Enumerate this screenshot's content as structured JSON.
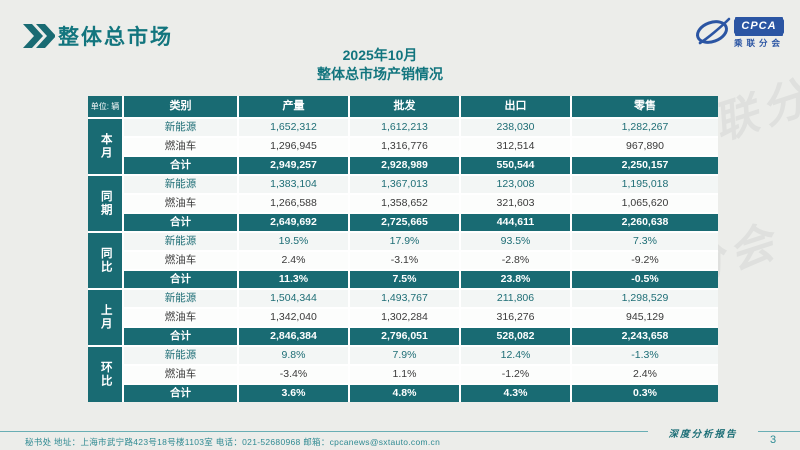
{
  "page": {
    "title": "整体总市场",
    "subtitle_line1": "2025年10月",
    "subtitle_line2": "整体总市场产销情况",
    "footer": "秘书处   地址：上海市武宁路423号18号楼1103室   电话：021-52680968   邮箱：cpcanews@sxtauto.com.cn",
    "report_label": "深度分析报告",
    "page_number": "3"
  },
  "logo": {
    "wordmark": "CPCA",
    "subtext": "乘联分会"
  },
  "watermark": {
    "text": "CPCA 乘联分会"
  },
  "colors": {
    "teal": "#196b73",
    "title_teal": "#12757e",
    "logo_blue": "#2b55a3",
    "nev_text": "#1e6e76"
  },
  "table": {
    "unit_label": "单位: 辆",
    "columns": [
      "类别",
      "产量",
      "批发",
      "出口",
      "零售"
    ],
    "groups": [
      {
        "label": "本月",
        "rows": [
          {
            "category": "新能源",
            "type": "nev",
            "values": [
              "1,652,312",
              "1,612,213",
              "238,030",
              "1,282,267"
            ]
          },
          {
            "category": "燃油车",
            "type": "fuel",
            "values": [
              "1,296,945",
              "1,316,776",
              "312,514",
              "967,890"
            ]
          },
          {
            "category": "合计",
            "type": "total",
            "values": [
              "2,949,257",
              "2,928,989",
              "550,544",
              "2,250,157"
            ]
          }
        ]
      },
      {
        "label": "同期",
        "rows": [
          {
            "category": "新能源",
            "type": "nev",
            "values": [
              "1,383,104",
              "1,367,013",
              "123,008",
              "1,195,018"
            ]
          },
          {
            "category": "燃油车",
            "type": "fuel",
            "values": [
              "1,266,588",
              "1,358,652",
              "321,603",
              "1,065,620"
            ]
          },
          {
            "category": "合计",
            "type": "total",
            "values": [
              "2,649,692",
              "2,725,665",
              "444,611",
              "2,260,638"
            ]
          }
        ]
      },
      {
        "label": "同比",
        "rows": [
          {
            "category": "新能源",
            "type": "nev",
            "values": [
              "19.5%",
              "17.9%",
              "93.5%",
              "7.3%"
            ]
          },
          {
            "category": "燃油车",
            "type": "fuel",
            "values": [
              "2.4%",
              "-3.1%",
              "-2.8%",
              "-9.2%"
            ]
          },
          {
            "category": "合计",
            "type": "total",
            "values": [
              "11.3%",
              "7.5%",
              "23.8%",
              "-0.5%"
            ]
          }
        ]
      },
      {
        "label": "上月",
        "rows": [
          {
            "category": "新能源",
            "type": "nev",
            "values": [
              "1,504,344",
              "1,493,767",
              "211,806",
              "1,298,529"
            ]
          },
          {
            "category": "燃油车",
            "type": "fuel",
            "values": [
              "1,342,040",
              "1,302,284",
              "316,276",
              "945,129"
            ]
          },
          {
            "category": "合计",
            "type": "total",
            "values": [
              "2,846,384",
              "2,796,051",
              "528,082",
              "2,243,658"
            ]
          }
        ]
      },
      {
        "label": "环比",
        "rows": [
          {
            "category": "新能源",
            "type": "nev",
            "values": [
              "9.8%",
              "7.9%",
              "12.4%",
              "-1.3%"
            ]
          },
          {
            "category": "燃油车",
            "type": "fuel",
            "values": [
              "-3.4%",
              "1.1%",
              "-1.2%",
              "2.4%"
            ]
          },
          {
            "category": "合计",
            "type": "total",
            "values": [
              "3.6%",
              "4.8%",
              "4.3%",
              "0.3%"
            ]
          }
        ]
      }
    ]
  }
}
